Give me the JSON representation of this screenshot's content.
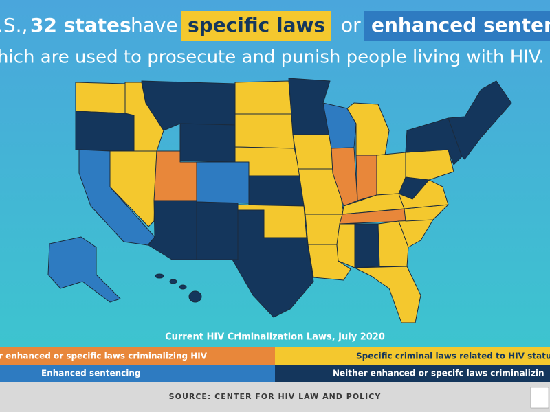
{
  "header": {
    "line1_start": ".S.,",
    "line1_bold": "32 states",
    "line1_end": "have",
    "highlight_specific": "specific laws",
    "connector": "or",
    "highlight_enhanced": "enhanced senten",
    "line2": "hich are used to prosecute and punish people living with HIV."
  },
  "map": {
    "title": "Current HIV Criminalization Laws, July 2020"
  },
  "legend": {
    "items": [
      "r enhanced or specific laws criminalizing HIV",
      "Specific criminal laws related to HIV statu",
      "Enhanced sentencing",
      "Neither enhanced or specifc laws criminalizin"
    ]
  },
  "footer": {
    "source": "SOURCE: CENTER FOR HIV LAW AND POLICY"
  }
}
